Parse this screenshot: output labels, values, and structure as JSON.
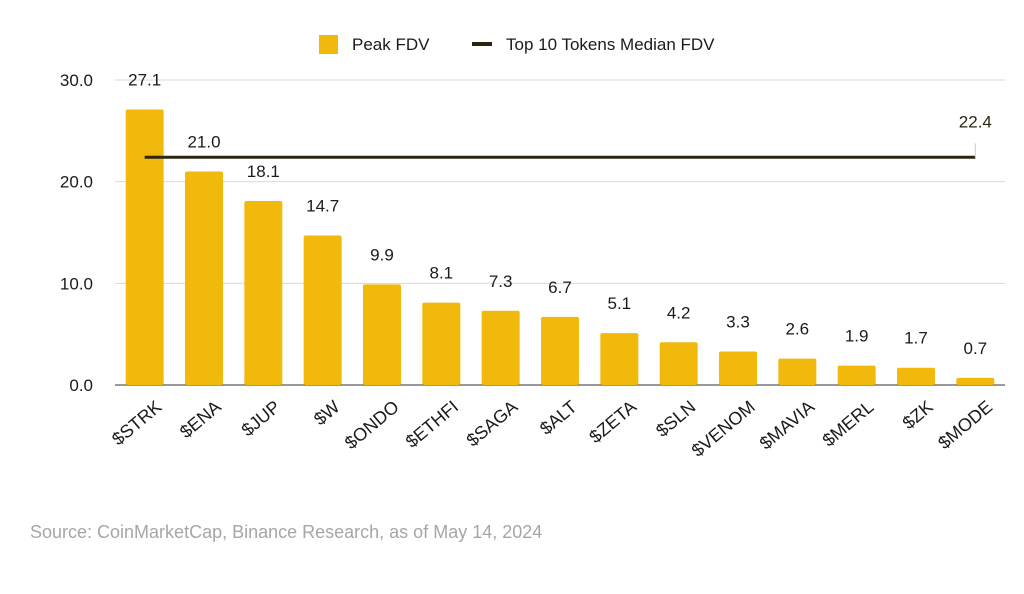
{
  "chart_data": {
    "type": "bar",
    "categories": [
      "$STRK",
      "$ENA",
      "$JUP",
      "$W",
      "$ONDO",
      "$ETHFI",
      "$SAGA",
      "$ALT",
      "$ZETA",
      "$SLN",
      "$VENOM",
      "$MAVIA",
      "$MERL",
      "$ZK",
      "$MODE"
    ],
    "series": [
      {
        "name": "Peak FDV",
        "values": [
          27.1,
          21.0,
          18.1,
          14.7,
          9.9,
          8.1,
          7.3,
          6.7,
          5.1,
          4.2,
          3.3,
          2.6,
          1.9,
          1.7,
          0.7
        ],
        "value_labels": [
          "27.1",
          "21.0",
          "18.1",
          "14.7",
          "9.9",
          "8.1",
          "7.3",
          "6.7",
          "5.1",
          "4.2",
          "3.3",
          "2.6",
          "1.9",
          "1.7",
          "0.7"
        ]
      }
    ],
    "reference_line": {
      "name": "Top 10 Tokens Median FDV",
      "value": 22.4,
      "label": "22.4"
    },
    "ylim": [
      0,
      30
    ],
    "yticks": [
      0,
      10,
      20,
      30
    ],
    "ytick_labels": [
      "0.0",
      "10.0",
      "20.0",
      "30.0"
    ],
    "title": "",
    "xlabel": "",
    "ylabel": "",
    "grid": true,
    "legend_position": "top-center",
    "legend": [
      {
        "name": "Peak FDV",
        "marker": "square"
      },
      {
        "name": "Top 10 Tokens Median FDV",
        "marker": "line"
      }
    ],
    "colors": {
      "bar": "#F0B90B",
      "line": "#2B2410"
    }
  },
  "source": "Source: CoinMarketCap, Binance Research, as of May 14, 2024"
}
